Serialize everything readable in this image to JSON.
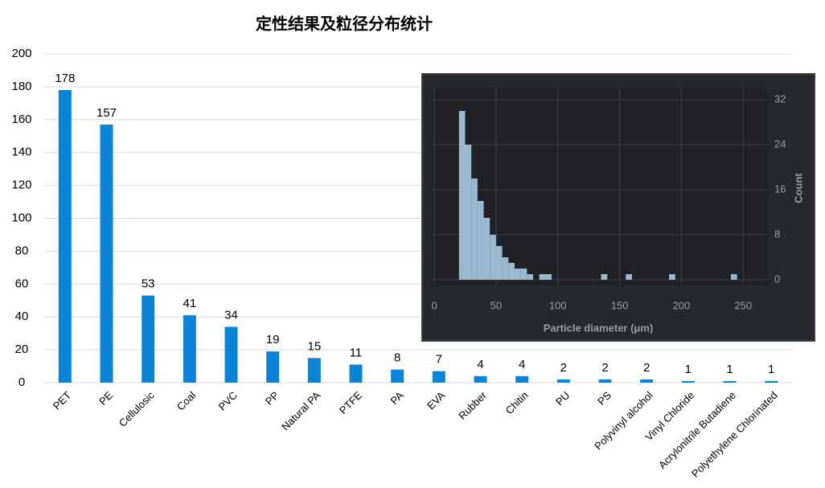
{
  "chart_data": [
    {
      "type": "bar",
      "title": "定性结果及粒径分布统计",
      "categories": [
        "PET",
        "PE",
        "Cellulosic",
        "Coal",
        "PVC",
        "PP",
        "Natural PA",
        "PTFE",
        "PA",
        "EVA",
        "Rubber",
        "Chitin",
        "PU",
        "PS",
        "Polyvinyl alcohol",
        "Vinyl Chloride",
        "Acrylonitrile Butadiene",
        "Polyethylene Chlorinated"
      ],
      "values": [
        178,
        157,
        53,
        41,
        34,
        19,
        15,
        11,
        8,
        7,
        4,
        4,
        2,
        2,
        2,
        1,
        1,
        1
      ],
      "color": "#0b84d8",
      "ylim": [
        0,
        200
      ],
      "yticks": [
        0,
        20,
        40,
        60,
        80,
        100,
        120,
        140,
        160,
        180,
        200
      ],
      "grid": true
    },
    {
      "type": "histogram",
      "x_label": "Particle diameter (μm)",
      "y_label": "Count",
      "bins": [
        20,
        25,
        30,
        35,
        40,
        45,
        50,
        55,
        60,
        65,
        70,
        75,
        80,
        85,
        90,
        95,
        100,
        105,
        110,
        115,
        120,
        125,
        130,
        135,
        140,
        145,
        150,
        155,
        160,
        165,
        170,
        175,
        180,
        185,
        190,
        195,
        200,
        205,
        210,
        215,
        220,
        225,
        230,
        235,
        240,
        245,
        250
      ],
      "counts": [
        30,
        24,
        18,
        14,
        11,
        8,
        6,
        4,
        3,
        2,
        2,
        1,
        0,
        1,
        1,
        0,
        0,
        0,
        0,
        0,
        0,
        0,
        0,
        1,
        0,
        0,
        0,
        1,
        0,
        0,
        0,
        0,
        0,
        0,
        1,
        0,
        0,
        0,
        0,
        0,
        0,
        0,
        0,
        0,
        1,
        0
      ],
      "color": "#9ab8d0",
      "xlim": [
        -2,
        270
      ],
      "xticks": [
        0,
        50,
        100,
        150,
        200,
        250
      ],
      "ylim": [
        -1,
        34
      ],
      "yticks": [
        0,
        8,
        16,
        24,
        32
      ],
      "grid": true
    }
  ]
}
